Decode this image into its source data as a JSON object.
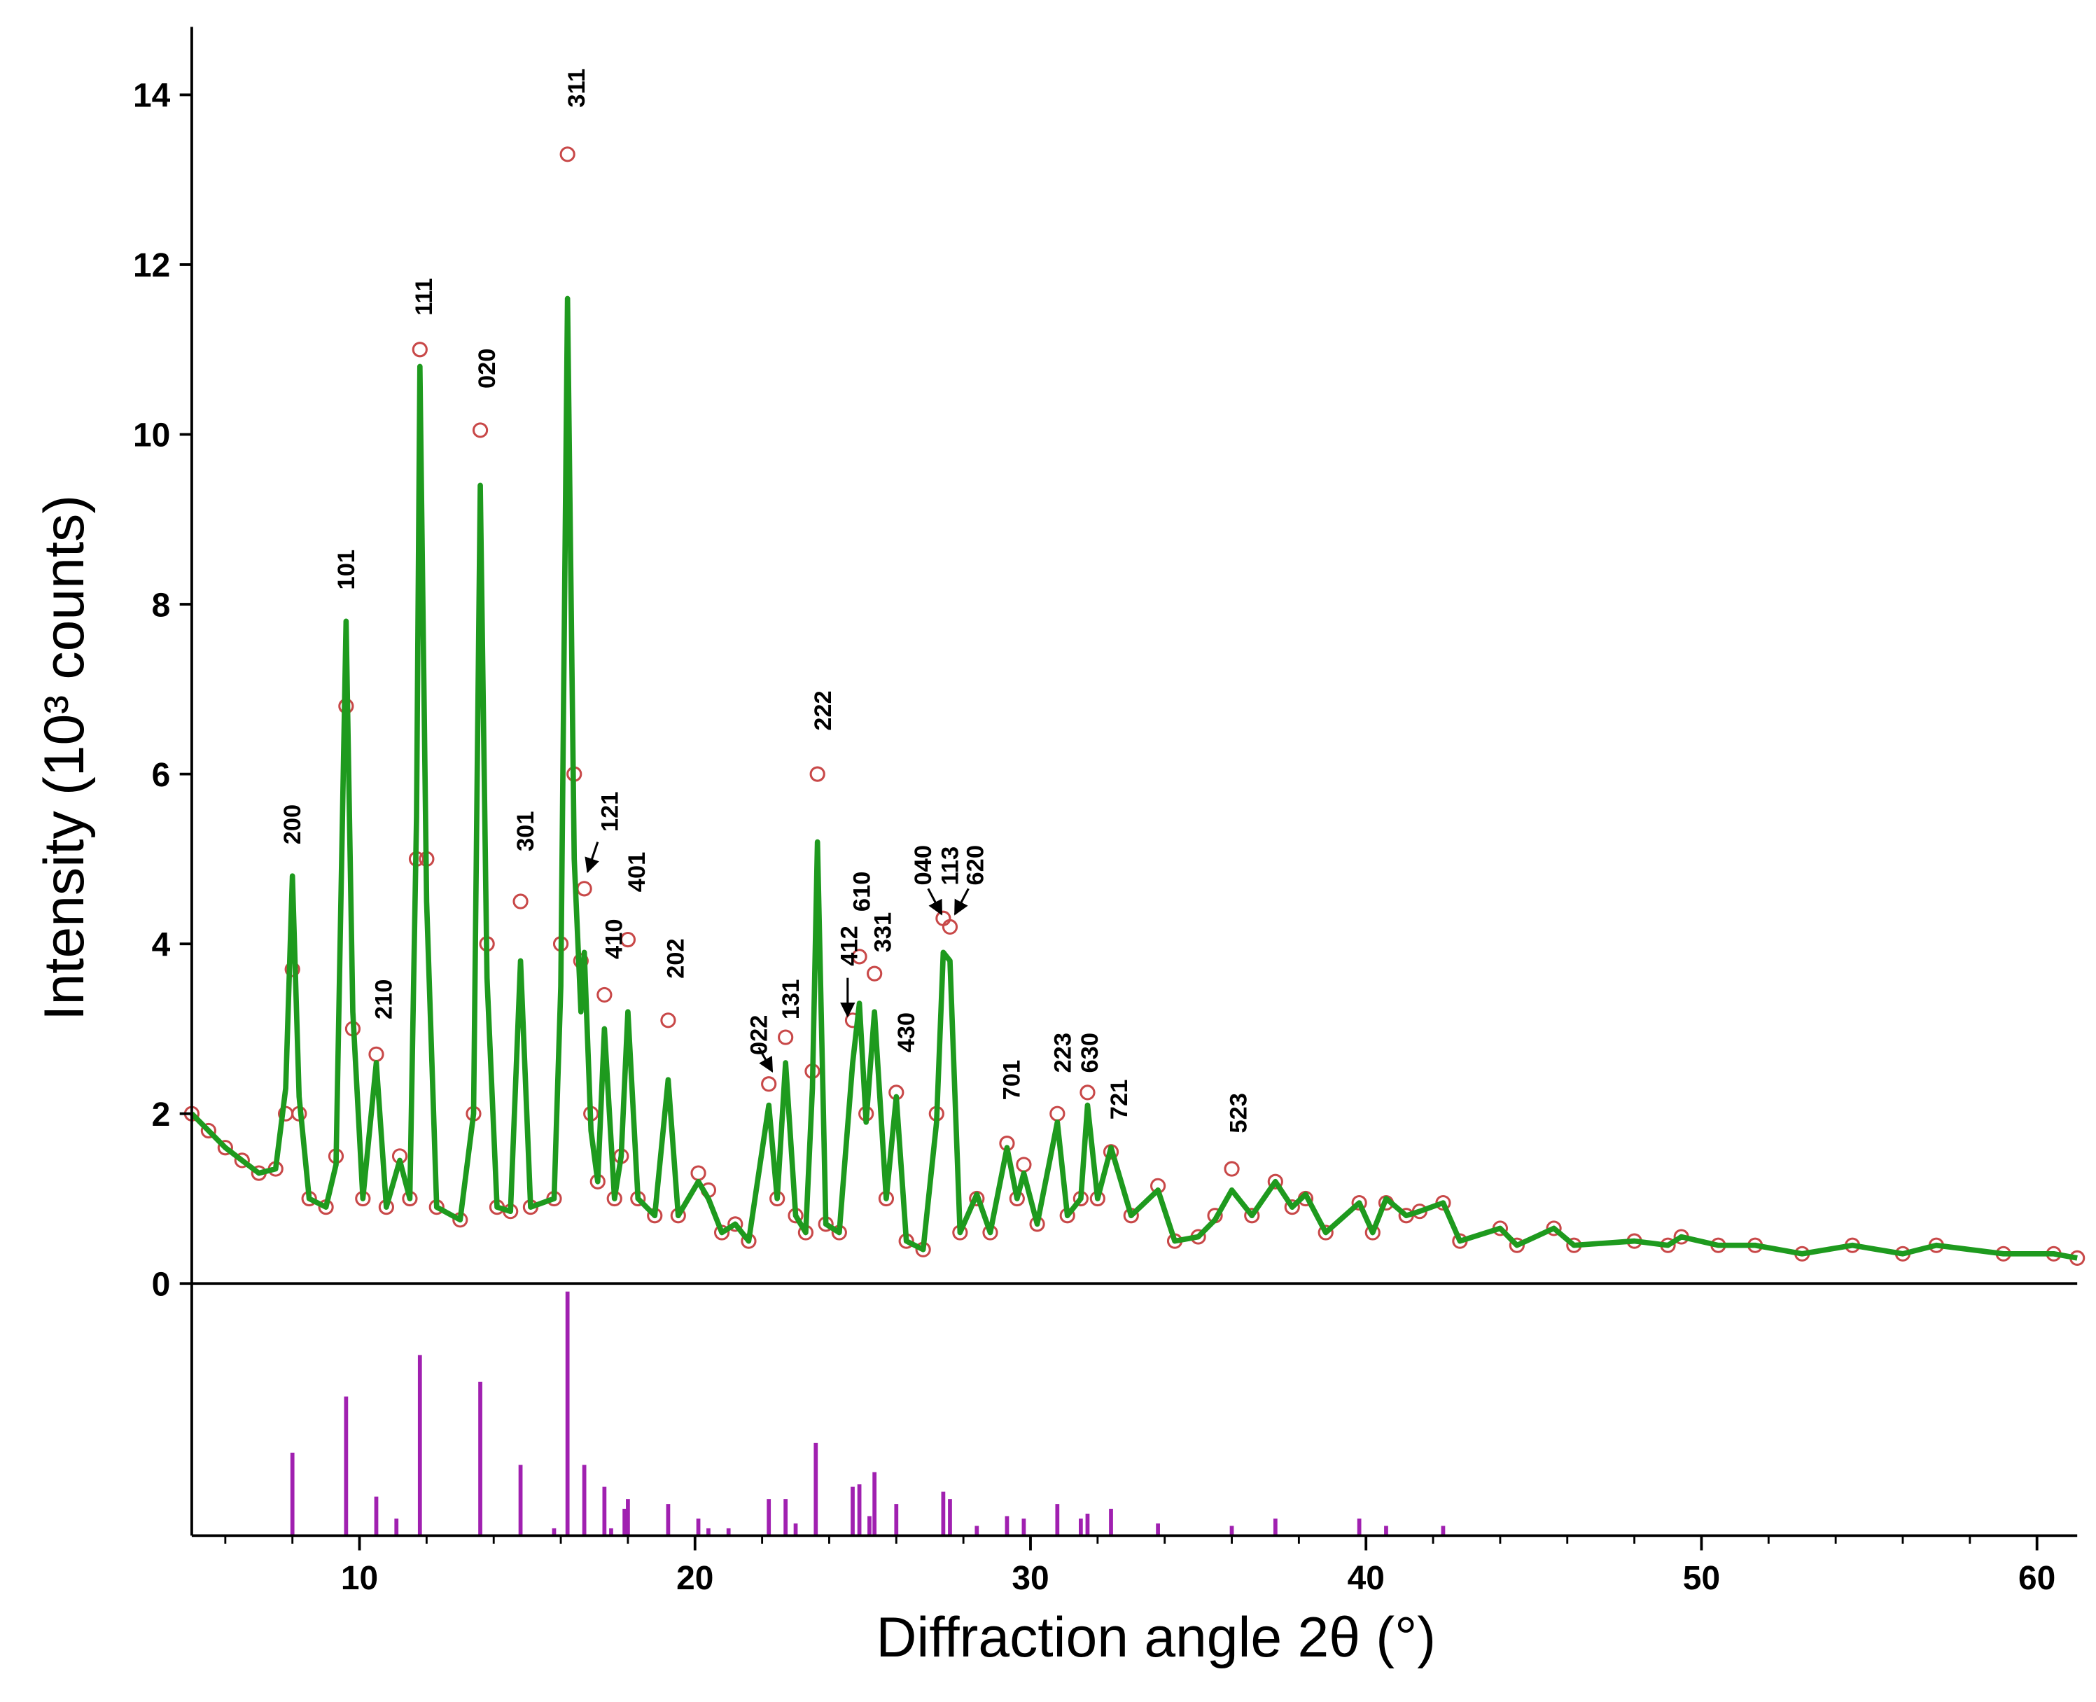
{
  "chart_data": {
    "type": "line",
    "xlabel": "Diffraction angle 2θ (°)",
    "ylabel": "Intensity (10³ counts)",
    "xlim": [
      5,
      61.2
    ],
    "ylim": [
      0,
      14.8
    ],
    "xticks": [
      10,
      20,
      30,
      40,
      50,
      60
    ],
    "xminorticks": [
      6,
      8,
      12,
      14,
      16,
      18,
      22,
      24,
      26,
      28,
      32,
      34,
      36,
      38,
      42,
      44,
      46,
      48,
      52,
      54,
      56,
      58
    ],
    "yticks": [
      0,
      2,
      4,
      6,
      8,
      10,
      12,
      14
    ],
    "x": [
      5.0,
      5.5,
      6.0,
      6.5,
      7.0,
      7.5,
      7.8,
      8.0,
      8.2,
      8.5,
      9.0,
      9.3,
      9.6,
      9.8,
      10.1,
      10.5,
      10.8,
      11.2,
      11.5,
      11.7,
      11.8,
      12.0,
      12.3,
      13.0,
      13.4,
      13.6,
      13.8,
      14.1,
      14.5,
      14.8,
      15.1,
      15.8,
      16.0,
      16.2,
      16.4,
      16.6,
      16.7,
      16.9,
      17.1,
      17.3,
      17.6,
      17.8,
      18.0,
      18.3,
      18.8,
      19.2,
      19.5,
      20.1,
      20.4,
      20.8,
      21.2,
      21.6,
      22.2,
      22.45,
      22.7,
      23.0,
      23.3,
      23.5,
      23.65,
      23.9,
      24.3,
      24.7,
      24.9,
      25.1,
      25.35,
      25.7,
      26.0,
      26.3,
      26.8,
      27.2,
      27.4,
      27.6,
      27.9,
      28.4,
      28.8,
      29.3,
      29.6,
      29.8,
      30.2,
      30.8,
      31.1,
      31.5,
      31.7,
      32.0,
      32.4,
      33.0,
      33.8,
      34.3,
      35.0,
      35.5,
      36.0,
      36.6,
      37.3,
      37.8,
      38.2,
      38.8,
      39.8,
      40.2,
      40.6,
      41.2,
      41.6,
      42.3,
      42.8,
      44.0,
      44.5,
      45.6,
      46.2,
      48.0,
      49.0,
      49.4,
      50.5,
      51.6,
      53.0,
      54.5,
      56.0,
      57.0,
      59.0,
      60.5,
      61.2
    ],
    "series": [
      {
        "marker": "circle",
        "color": "#c84848",
        "values": [
          2.0,
          1.8,
          1.6,
          1.45,
          1.3,
          1.35,
          2.0,
          3.7,
          2.0,
          1.0,
          0.9,
          1.5,
          6.8,
          3.0,
          1.0,
          2.7,
          0.9,
          1.5,
          1.0,
          5.0,
          11.0,
          5.0,
          0.9,
          0.75,
          2.0,
          10.05,
          4.0,
          0.9,
          0.85,
          4.5,
          0.9,
          1.0,
          4.0,
          13.3,
          6.0,
          3.8,
          4.65,
          2.0,
          1.2,
          3.4,
          1.0,
          1.5,
          4.05,
          1.0,
          0.8,
          3.1,
          0.8,
          1.3,
          1.1,
          0.6,
          0.7,
          0.5,
          2.35,
          1.0,
          2.9,
          0.8,
          0.6,
          2.5,
          6.0,
          0.7,
          0.6,
          3.1,
          3.85,
          2.0,
          3.65,
          1.0,
          2.25,
          0.5,
          0.4,
          2.0,
          4.3,
          4.2,
          0.6,
          1.0,
          0.6,
          1.65,
          1.0,
          1.4,
          0.7,
          2.0,
          0.8,
          1.0,
          2.25,
          1.0,
          1.55,
          0.8,
          1.15,
          0.5,
          0.55,
          0.8,
          1.35,
          0.8,
          1.2,
          0.9,
          1.0,
          0.6,
          0.95,
          0.6,
          0.95,
          0.8,
          0.85,
          0.95,
          0.5,
          0.65,
          0.45,
          0.65,
          0.45,
          0.5,
          0.45,
          0.55,
          0.45,
          0.45,
          0.35,
          0.45,
          0.35,
          0.45,
          0.35,
          0.35,
          0.3
        ]
      },
      {
        "marker": "line",
        "color": "#1e9a1e",
        "values": [
          2.0,
          1.8,
          1.6,
          1.45,
          1.3,
          1.35,
          2.3,
          4.8,
          2.2,
          1.0,
          0.9,
          1.4,
          7.8,
          3.2,
          1.0,
          2.6,
          0.9,
          1.45,
          1.0,
          5.5,
          10.8,
          4.5,
          0.9,
          0.75,
          2.0,
          9.4,
          3.6,
          0.9,
          0.85,
          3.8,
          0.9,
          1.0,
          3.5,
          11.6,
          5.0,
          3.2,
          3.9,
          1.8,
          1.2,
          3.0,
          1.0,
          1.5,
          3.2,
          1.0,
          0.8,
          2.4,
          0.8,
          1.2,
          1.0,
          0.6,
          0.7,
          0.5,
          2.1,
          1.0,
          2.6,
          0.8,
          0.6,
          2.3,
          5.2,
          0.7,
          0.6,
          2.6,
          3.3,
          1.9,
          3.2,
          1.0,
          2.2,
          0.5,
          0.4,
          1.9,
          3.9,
          3.8,
          0.6,
          1.05,
          0.6,
          1.6,
          1.0,
          1.3,
          0.7,
          1.9,
          0.8,
          1.0,
          2.1,
          1.0,
          1.6,
          0.8,
          1.1,
          0.5,
          0.55,
          0.75,
          1.1,
          0.8,
          1.2,
          0.9,
          1.05,
          0.6,
          0.95,
          0.6,
          1.0,
          0.8,
          0.85,
          0.95,
          0.5,
          0.65,
          0.45,
          0.65,
          0.45,
          0.5,
          0.45,
          0.55,
          0.45,
          0.45,
          0.35,
          0.45,
          0.35,
          0.45,
          0.35,
          0.35,
          0.3
        ]
      }
    ],
    "reference": {
      "color": "#a020b0",
      "ylim": [
        0,
        100
      ],
      "x": [
        8.0,
        9.6,
        10.5,
        11.1,
        11.8,
        13.6,
        14.8,
        15.8,
        16.2,
        16.7,
        17.3,
        17.5,
        17.9,
        18.0,
        19.2,
        20.1,
        20.4,
        21.0,
        22.2,
        22.7,
        23.0,
        23.6,
        24.7,
        24.9,
        25.2,
        25.35,
        26.0,
        27.4,
        27.6,
        28.4,
        29.3,
        29.8,
        30.8,
        31.5,
        31.7,
        32.4,
        33.8,
        36.0,
        37.3,
        39.8,
        40.6,
        42.3
      ],
      "values": [
        34,
        57,
        16,
        7,
        74,
        63,
        29,
        3,
        100,
        29,
        20,
        3,
        11,
        15,
        13,
        7,
        3,
        3,
        15,
        15,
        5,
        38,
        20,
        21,
        8,
        26,
        13,
        18,
        15,
        4,
        8,
        7,
        13,
        7,
        9,
        11,
        5,
        4,
        7,
        7,
        4,
        4
      ]
    },
    "annotations": [
      {
        "text": "200",
        "x": 8.0,
        "y": 5.17
      },
      {
        "text": "101",
        "x": 9.6,
        "y": 8.17
      },
      {
        "text": "210",
        "x": 10.72,
        "y": 3.11
      },
      {
        "text": "111",
        "x": 11.92,
        "y": 11.4
      },
      {
        "text": "020",
        "x": 13.8,
        "y": 10.54
      },
      {
        "text": "301",
        "x": 14.95,
        "y": 5.09
      },
      {
        "text": "311",
        "x": 16.47,
        "y": 13.85
      },
      {
        "text": "121",
        "x": 17.46,
        "y": 5.32,
        "arrow": [
          17.1,
          5.2,
          16.8,
          4.85
        ]
      },
      {
        "text": "410",
        "x": 17.58,
        "y": 3.82
      },
      {
        "text": "401",
        "x": 18.26,
        "y": 4.61
      },
      {
        "text": "202",
        "x": 19.42,
        "y": 3.59
      },
      {
        "text": "022",
        "x": 21.9,
        "y": 2.69,
        "arrow": [
          21.9,
          2.78,
          22.3,
          2.5
        ]
      },
      {
        "text": "131",
        "x": 22.85,
        "y": 3.11
      },
      {
        "text": "222",
        "x": 23.81,
        "y": 6.51
      },
      {
        "text": "412",
        "x": 24.6,
        "y": 3.74,
        "arrow": [
          24.55,
          3.6,
          24.55,
          3.15
        ]
      },
      {
        "text": "610",
        "x": 24.97,
        "y": 4.38
      },
      {
        "text": "331",
        "x": 25.6,
        "y": 3.9
      },
      {
        "text": "430",
        "x": 26.3,
        "y": 2.72
      },
      {
        "text": "040",
        "x": 26.8,
        "y": 4.69,
        "arrow": [
          26.95,
          4.65,
          27.35,
          4.35
        ]
      },
      {
        "text": "113",
        "x": 27.6,
        "y": 4.69
      },
      {
        "text": "620",
        "x": 28.35,
        "y": 4.69,
        "arrow": [
          28.15,
          4.65,
          27.75,
          4.35
        ]
      },
      {
        "text": "701",
        "x": 29.44,
        "y": 2.16
      },
      {
        "text": "223",
        "x": 30.96,
        "y": 2.48
      },
      {
        "text": "630",
        "x": 31.76,
        "y": 2.48
      },
      {
        "text": "721",
        "x": 32.64,
        "y": 1.93
      },
      {
        "text": "523",
        "x": 36.2,
        "y": 1.77
      }
    ]
  }
}
